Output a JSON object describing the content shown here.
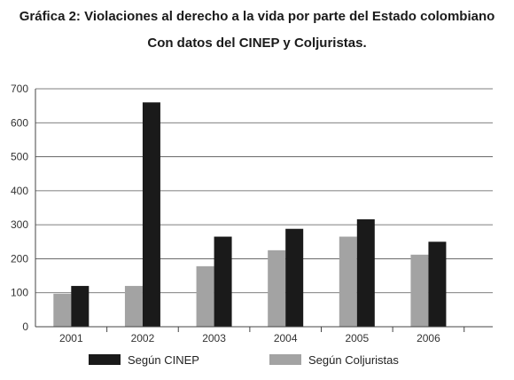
{
  "chart_data": {
    "type": "bar",
    "title": "Gráfica 2: Violaciones al derecho a la vida por parte del Estado colombiano",
    "subtitle": "Con datos del CINEP y Coljuristas.",
    "xlabel": "",
    "ylabel": "",
    "categories": [
      "2001",
      "2002",
      "2003",
      "2004",
      "2005",
      "2006"
    ],
    "series": [
      {
        "name": "Según Coljuristas",
        "values": [
          97,
          120,
          178,
          225,
          265,
          212
        ],
        "color": "#a3a3a3"
      },
      {
        "name": "Según CINEP",
        "values": [
          120,
          660,
          265,
          288,
          316,
          250
        ],
        "color": "#1a1a1a"
      }
    ],
    "ylim": [
      0,
      700
    ],
    "yticks": [
      0,
      100,
      200,
      300,
      400,
      500,
      600,
      700
    ],
    "grid": true,
    "legend": {
      "placement": "bottom",
      "order": [
        "Según CINEP",
        "Según Coljuristas"
      ]
    }
  }
}
